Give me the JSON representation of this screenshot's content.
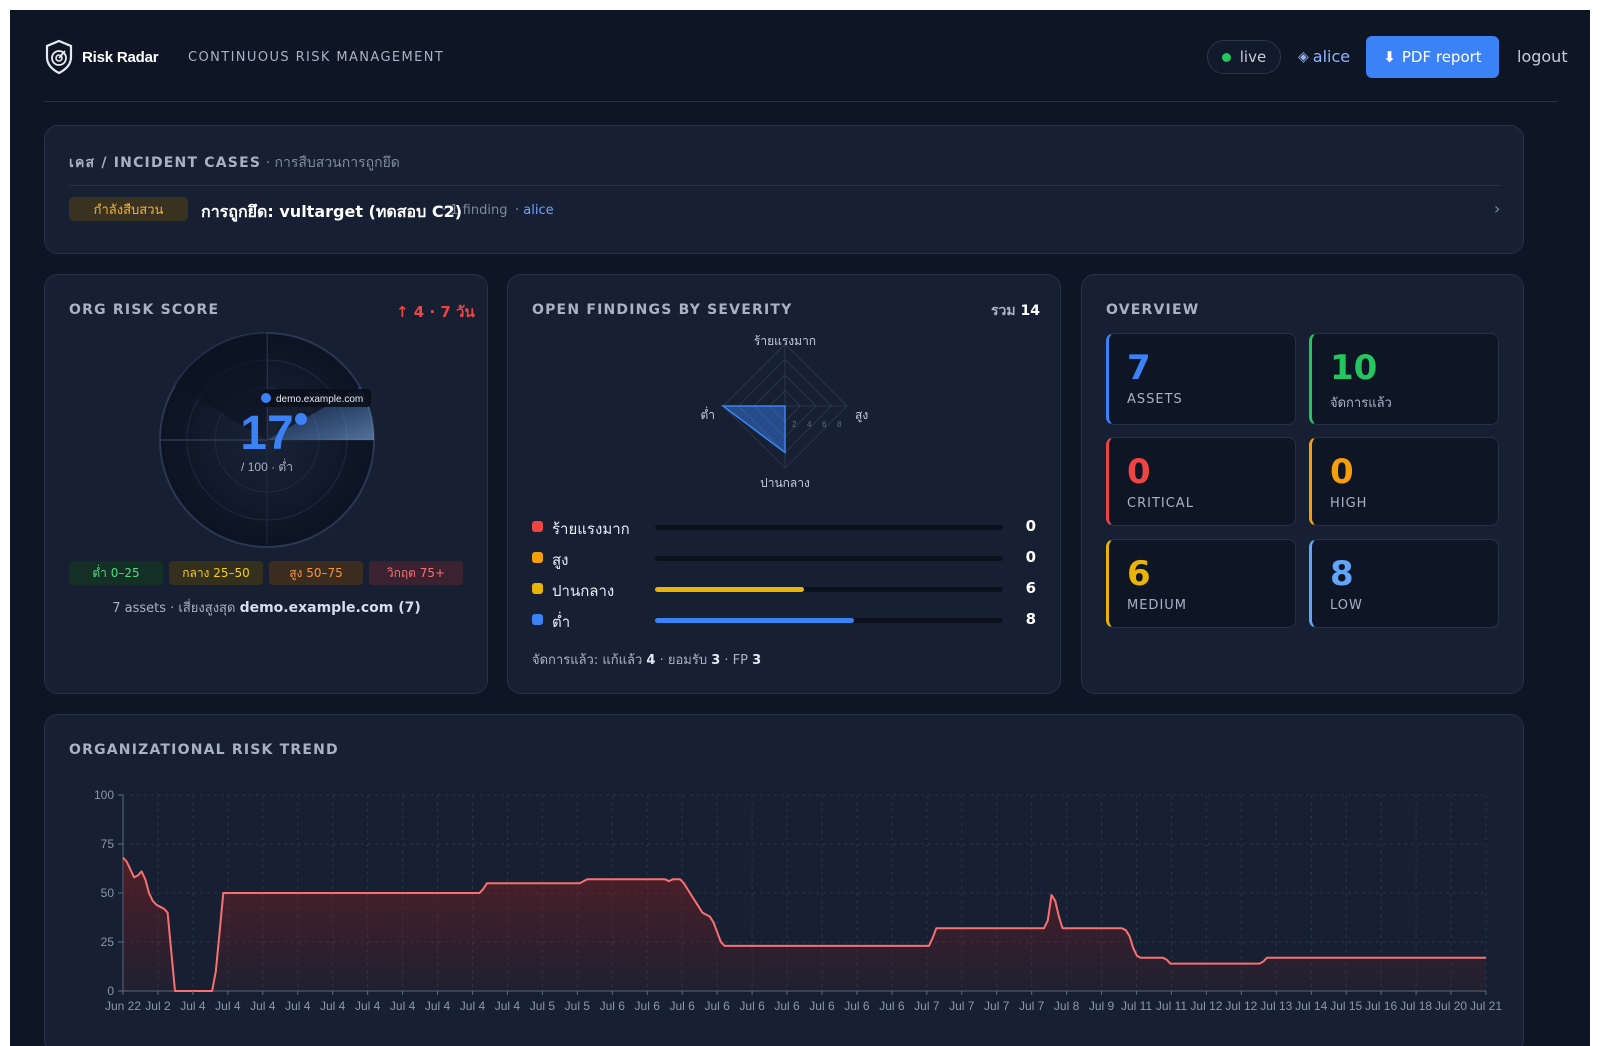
{
  "header": {
    "brand": "Risk Radar",
    "tagline": "CONTINUOUS RISK MANAGEMENT",
    "status": "live",
    "user": "alice",
    "pdf_label": "PDF report",
    "logout_label": "logout"
  },
  "incident": {
    "title": "เคส / INCIDENT CASES",
    "subtitle": " · การสืบสวนการถูกยึด",
    "badge": "กำลังสืบสวน",
    "case_title": "การถูกยึด: vultarget (ทดสอบ C2)",
    "findings": "· 1 finding",
    "owner": "· alice",
    "chevron": "›"
  },
  "risk_score": {
    "title": "ORG RISK SCORE",
    "delta": "↑ 4 · 7 วัน",
    "score": "17",
    "suffix": "/ 100 · ต่ำ",
    "score_value": 17,
    "asset_label": "demo.example.com",
    "bands": [
      {
        "label": "ต่ำ 0–25",
        "bg": "#143026",
        "fg": "#4ade80"
      },
      {
        "label": "กลาง 25–50",
        "bg": "#33301e",
        "fg": "#facc15"
      },
      {
        "label": "สูง 50–75",
        "bg": "#3a2d20",
        "fg": "#fb923c"
      },
      {
        "label": "วิกฤต 75+",
        "bg": "#3a2230",
        "fg": "#f87171"
      }
    ],
    "assets_prefix": "7 assets · เสี่ยงสูงสุด ",
    "top_asset": "demo.example.com (7)"
  },
  "severity": {
    "title": "OPEN FINDINGS BY SEVERITY",
    "total_prefix": "รวม ",
    "total": "14",
    "radar_axes": [
      "ร้ายแรงมาก",
      "สูง",
      "ปานกลาง",
      "ต่ำ"
    ],
    "radar_ticks": [
      "2",
      "4",
      "6",
      "8"
    ],
    "rows": [
      {
        "label": "ร้ายแรงมาก",
        "value": 0,
        "color": "#ef4444"
      },
      {
        "label": "สูง",
        "value": 0,
        "color": "#f59e0b"
      },
      {
        "label": "ปานกลาง",
        "value": 6,
        "color": "#eab308"
      },
      {
        "label": "ต่ำ",
        "value": 8,
        "color": "#3b82f6"
      }
    ],
    "bar_max": 14,
    "handled_prefix": "จัดการแล้ว: แก้แล้ว ",
    "fixed": "4",
    "accepted_prefix": " · ยอมรับ ",
    "accepted": "3",
    "fp_prefix": " · FP ",
    "fp": "3"
  },
  "overview": {
    "title": "OVERVIEW",
    "tiles": [
      {
        "value": "7",
        "label": "ASSETS",
        "color": "#3b82f6"
      },
      {
        "value": "10",
        "label": "จัดการแล้ว",
        "color": "#22c55e"
      },
      {
        "value": "0",
        "label": "CRITICAL",
        "color": "#ef4444"
      },
      {
        "value": "0",
        "label": "HIGH",
        "color": "#f59e0b"
      },
      {
        "value": "6",
        "label": "MEDIUM",
        "color": "#eab308"
      },
      {
        "value": "8",
        "label": "LOW",
        "color": "#60a5fa"
      }
    ]
  },
  "chart_data": {
    "type": "area",
    "title": "ORGANIZATIONAL RISK TREND",
    "ylim": [
      0,
      100
    ],
    "yticks": [
      0,
      25,
      50,
      75,
      100
    ],
    "x_labels": [
      "Jun 22",
      "Jul 2",
      "Jul 4",
      "Jul 4",
      "Jul 4",
      "Jul 4",
      "Jul 4",
      "Jul 4",
      "Jul 4",
      "Jul 4",
      "Jul 4",
      "Jul 4",
      "Jul 5",
      "Jul 5",
      "Jul 6",
      "Jul 6",
      "Jul 6",
      "Jul 6",
      "Jul 6",
      "Jul 6",
      "Jul 6",
      "Jul 6",
      "Jul 6",
      "Jul 7",
      "Jul 7",
      "Jul 7",
      "Jul 7",
      "Jul 8",
      "Jul 9",
      "Jul 11",
      "Jul 11",
      "Jul 12",
      "Jul 12",
      "Jul 13",
      "Jul 14",
      "Jul 15",
      "Jul 16",
      "Jul 18",
      "Jul 20",
      "Jul 21"
    ],
    "series": [
      {
        "values": [
          68,
          66,
          62,
          58,
          59,
          61,
          57,
          50,
          46,
          44,
          43,
          42,
          40,
          20,
          0,
          0,
          0,
          0,
          0,
          0,
          0,
          0,
          0,
          0,
          0,
          10,
          30,
          50,
          50,
          50,
          50,
          50,
          50,
          50,
          50,
          50,
          50,
          50,
          50,
          50,
          50,
          50,
          50,
          50,
          50,
          50,
          50,
          50,
          50,
          50,
          50,
          50,
          50,
          50,
          50,
          50,
          50,
          50,
          50,
          50,
          50,
          50,
          50,
          50,
          50,
          50,
          50,
          50,
          50,
          50,
          50,
          50,
          50,
          50,
          50,
          50,
          50,
          50,
          50,
          50,
          50,
          50,
          50,
          50,
          50,
          50,
          50,
          50,
          50,
          50,
          50,
          50,
          50,
          50,
          50,
          50,
          50,
          52,
          55,
          55,
          55,
          55,
          55,
          55,
          55,
          55,
          55,
          55,
          55,
          55,
          55,
          55,
          55,
          55,
          55,
          55,
          55,
          55,
          55,
          55,
          55,
          55,
          55,
          55,
          56,
          57,
          57,
          57,
          57,
          57,
          57,
          57,
          57,
          57,
          57,
          57,
          57,
          57,
          57,
          57,
          57,
          57,
          57,
          57,
          57,
          57,
          57,
          56,
          57,
          57,
          57,
          55,
          52,
          49,
          46,
          43,
          40,
          39,
          38,
          35,
          30,
          25,
          23,
          23,
          23,
          23,
          23,
          23,
          23,
          23,
          23,
          23,
          23,
          23,
          23,
          23,
          23,
          23,
          23,
          23,
          23,
          23,
          23,
          23,
          23,
          23,
          23,
          23,
          23,
          23,
          23,
          23,
          23,
          23,
          23,
          23,
          23,
          23,
          23,
          23,
          23,
          23,
          23,
          23,
          23,
          23,
          23,
          23,
          23,
          23,
          23,
          23,
          23,
          23,
          23,
          23,
          23,
          23,
          27,
          32,
          32,
          32,
          32,
          32,
          32,
          32,
          32,
          32,
          32,
          32,
          32,
          32,
          32,
          32,
          32,
          32,
          32,
          32,
          32,
          32,
          32,
          32,
          32,
          32,
          32,
          32,
          32,
          32,
          32,
          36,
          49,
          46,
          38,
          32,
          32,
          32,
          32,
          32,
          32,
          32,
          32,
          32,
          32,
          32,
          32,
          32,
          32,
          32,
          32,
          32,
          31,
          28,
          22,
          18,
          17,
          17,
          17,
          17,
          17,
          17,
          17,
          16,
          14,
          14,
          14,
          14,
          14,
          14,
          14,
          14,
          14,
          14,
          14,
          14,
          14,
          14,
          14,
          14,
          14,
          14,
          14,
          14,
          14,
          14,
          14,
          14,
          14,
          15,
          17,
          17,
          17,
          17,
          17,
          17,
          17,
          17,
          17,
          17,
          17,
          17,
          17,
          17,
          17,
          17,
          17,
          17,
          17,
          17,
          17,
          17,
          17,
          17,
          17,
          17,
          17,
          17,
          17,
          17,
          17,
          17,
          17,
          17,
          17,
          17,
          17,
          17,
          17,
          17,
          17,
          17,
          17,
          17,
          17,
          17,
          17,
          17,
          17,
          17,
          17,
          17,
          17,
          17,
          17,
          17,
          17,
          17,
          17,
          17
        ]
      }
    ],
    "colors": {
      "line": "#f87171",
      "fill": "#7f1d1d",
      "grid": "#2a3549",
      "axis": "#5b6a82"
    }
  }
}
